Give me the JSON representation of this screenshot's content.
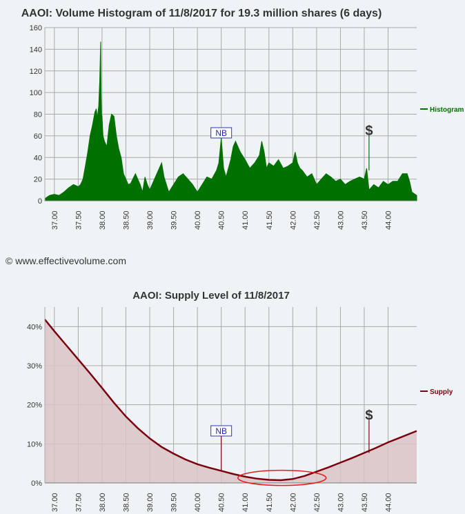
{
  "credit": "© www.effectivevolume.com",
  "chart_data": [
    {
      "type": "area",
      "title": "AAOI: Volume Histogram of 11/8/2017 for 19.3 million shares (6 days)",
      "legend": "Histogram",
      "legend_position": "right",
      "grid": true,
      "xlim": [
        36.8,
        44.6
      ],
      "ylim": [
        0,
        160
      ],
      "x_ticks": [
        "37.00",
        "37.50",
        "38.00",
        "38.50",
        "39.00",
        "39.50",
        "40.00",
        "40.50",
        "41.00",
        "41.50",
        "42.00",
        "42.50",
        "43.00",
        "43.50",
        "44.00"
      ],
      "y_ticks": [
        "0",
        "20",
        "40",
        "60",
        "80",
        "100",
        "120",
        "140",
        "160"
      ],
      "color": "#007000",
      "series": [
        {
          "x": [
            36.8,
            36.9,
            37.0,
            37.1,
            37.2,
            37.3,
            37.4,
            37.5,
            37.55,
            37.6,
            37.65,
            37.7,
            37.75,
            37.8,
            37.85,
            37.88,
            37.9,
            37.93,
            37.95,
            37.97,
            37.98,
            37.99,
            38.0,
            38.02,
            38.05,
            38.1,
            38.15,
            38.2,
            38.25,
            38.3,
            38.35,
            38.4,
            38.45,
            38.5,
            38.55,
            38.6,
            38.7,
            38.8,
            38.85,
            38.9,
            38.95,
            39.0,
            39.1,
            39.2,
            39.25,
            39.3,
            39.35,
            39.4,
            39.5,
            39.6,
            39.7,
            39.8,
            39.9,
            40.0,
            40.1,
            40.2,
            40.3,
            40.4,
            40.45,
            40.5,
            40.55,
            40.6,
            40.7,
            40.75,
            40.8,
            40.9,
            41.0,
            41.1,
            41.2,
            41.3,
            41.35,
            41.4,
            41.45,
            41.5,
            41.6,
            41.7,
            41.8,
            41.9,
            42.0,
            42.05,
            42.1,
            42.15,
            42.2,
            42.3,
            42.4,
            42.5,
            42.6,
            42.7,
            42.8,
            42.9,
            43.0,
            43.1,
            43.2,
            43.3,
            43.4,
            43.5,
            43.55,
            43.6,
            43.7,
            43.8,
            43.9,
            44.0,
            44.1,
            44.2,
            44.3,
            44.4,
            44.45,
            44.5,
            44.6
          ],
          "values": [
            2,
            5,
            6,
            5,
            8,
            12,
            15,
            13,
            15,
            20,
            32,
            45,
            60,
            70,
            82,
            85,
            76,
            88,
            110,
            147,
            100,
            80,
            78,
            60,
            55,
            50,
            70,
            80,
            78,
            60,
            48,
            40,
            25,
            20,
            15,
            16,
            25,
            15,
            8,
            22,
            15,
            10,
            20,
            30,
            35,
            22,
            15,
            8,
            15,
            22,
            25,
            20,
            15,
            8,
            15,
            22,
            20,
            28,
            35,
            58,
            30,
            22,
            38,
            50,
            55,
            45,
            38,
            30,
            35,
            42,
            55,
            45,
            30,
            35,
            32,
            38,
            30,
            32,
            35,
            45,
            35,
            30,
            28,
            22,
            25,
            15,
            20,
            25,
            22,
            18,
            20,
            15,
            18,
            20,
            22,
            20,
            30,
            10,
            15,
            12,
            18,
            15,
            18,
            18,
            25,
            25,
            18,
            8,
            5
          ]
        }
      ],
      "annotations": [
        {
          "label": "NB",
          "x": 40.5,
          "y": 58
        },
        {
          "label": "$",
          "x": 43.6,
          "y": 60
        }
      ]
    },
    {
      "type": "area",
      "title": "AAOI: Supply Level of 11/8/2017",
      "legend": "Supply",
      "legend_position": "right",
      "grid": true,
      "xlim": [
        36.8,
        44.6
      ],
      "ylim": [
        0,
        45
      ],
      "x_ticks": [
        "37.00",
        "37.50",
        "38.00",
        "38.50",
        "39.00",
        "39.50",
        "40.00",
        "40.50",
        "41.00",
        "41.50",
        "42.00",
        "42.50",
        "43.00",
        "43.50",
        "44.00"
      ],
      "y_ticks": [
        "0%",
        "10%",
        "20%",
        "30%",
        "40%"
      ],
      "color": "#7a0010",
      "series": [
        {
          "x": [
            36.8,
            37.0,
            37.25,
            37.5,
            37.75,
            38.0,
            38.25,
            38.5,
            38.75,
            39.0,
            39.25,
            39.5,
            39.75,
            40.0,
            40.25,
            40.5,
            40.75,
            41.0,
            41.25,
            41.5,
            41.75,
            42.0,
            42.25,
            42.5,
            42.75,
            43.0,
            43.25,
            43.5,
            43.75,
            44.0,
            44.25,
            44.6
          ],
          "values": [
            41.8,
            38.8,
            35.2,
            31.6,
            28.0,
            24.3,
            20.5,
            17.0,
            14.0,
            11.4,
            9.2,
            7.5,
            6.0,
            4.8,
            3.9,
            3.1,
            2.3,
            1.6,
            1.1,
            0.8,
            0.7,
            1.0,
            1.8,
            2.9,
            4.0,
            5.2,
            6.4,
            7.7,
            9.0,
            10.4,
            11.6,
            13.3
          ]
        }
      ],
      "annotations": [
        {
          "label": "NB",
          "x": 40.5,
          "y": 12
        },
        {
          "label": "$",
          "x": 43.6,
          "y": 16
        }
      ],
      "highlight_ellipse": {
        "x_from": 40.85,
        "x_to": 42.7,
        "y_center": 1.3
      }
    }
  ]
}
